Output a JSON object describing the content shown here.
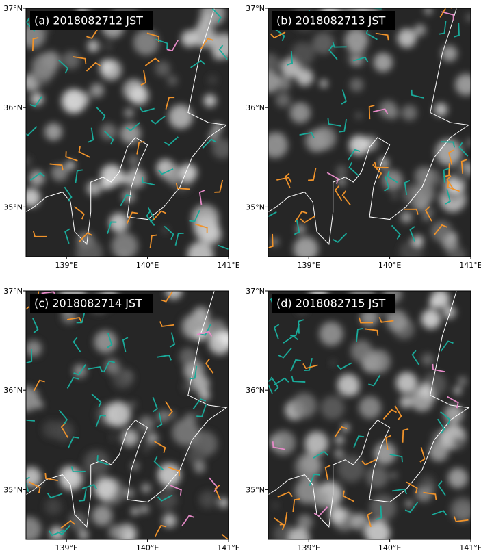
{
  "panels": [
    {
      "title": "(a) 2018082712 JST"
    },
    {
      "title": "(b) 2018082713 JST"
    },
    {
      "title": "(c) 2018082714 JST"
    },
    {
      "title": "(d) 2018082715 JST"
    }
  ],
  "axes": {
    "lonlim": [
      138.5,
      141
    ],
    "latlim": [
      34.5,
      37
    ],
    "lonticks": [
      {
        "value": 139,
        "label": "139°E"
      },
      {
        "value": 140,
        "label": "140°E"
      },
      {
        "value": 141,
        "label": "141°E"
      }
    ],
    "latticks": [
      {
        "value": 35,
        "label": "35°N"
      },
      {
        "value": 36,
        "label": "36°N"
      },
      {
        "value": 37,
        "label": "37°N"
      }
    ]
  }
}
